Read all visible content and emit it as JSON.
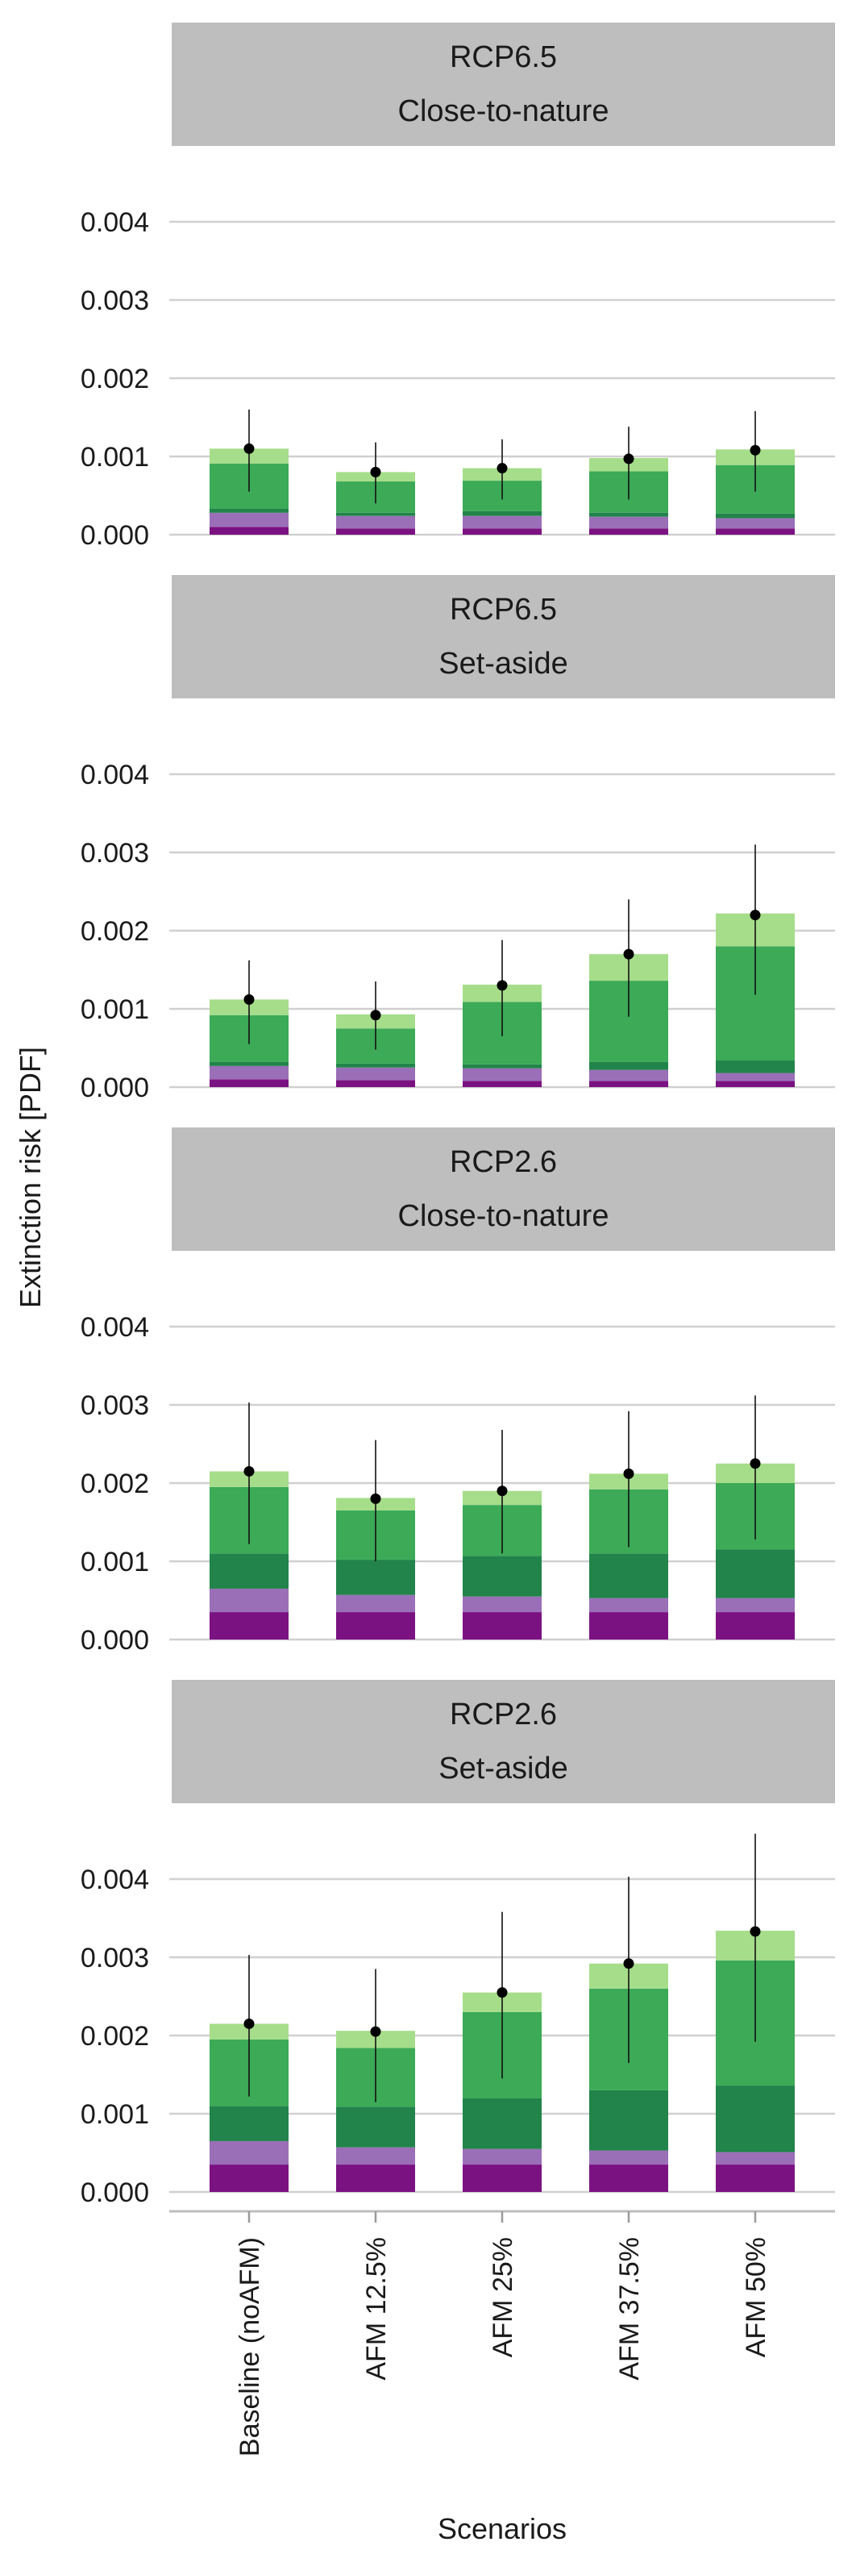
{
  "chart_data": {
    "type": "bar",
    "stacked": true,
    "xlabel": "Scenarios",
    "ylabel": "Extinction risk [PDF]",
    "ylim": [
      0,
      0.0045
    ],
    "yticks": [
      0.0,
      0.001,
      0.002,
      0.003,
      0.004
    ],
    "ytick_labels": [
      "0.000",
      "0.001",
      "0.002",
      "0.003",
      "0.004"
    ],
    "categories": [
      "Baseline (noAFM)",
      "AFM 12.5%",
      "AFM 25%",
      "AFM 37.5%",
      "AFM 50%"
    ],
    "grid": "horizontal",
    "legend": "none",
    "segment_colors": [
      "#7b1282",
      "#9b6fb8",
      "#22844a",
      "#3caa57",
      "#a6dd8a"
    ],
    "panels": [
      {
        "strip_line1": "RCP6.5",
        "strip_line2": "Close-to-nature",
        "segments": [
          [
            0.0001,
            0.00018,
            5e-05,
            0.00058,
            0.00019
          ],
          [
            8e-05,
            0.00016,
            4e-05,
            0.0004,
            0.00012
          ],
          [
            8e-05,
            0.00016,
            6e-05,
            0.00039,
            0.00016
          ],
          [
            8e-05,
            0.00015,
            5e-05,
            0.00053,
            0.00017
          ],
          [
            8e-05,
            0.00013,
            6e-05,
            0.00062,
            0.0002
          ]
        ],
        "point": [
          0.0011,
          0.0008,
          0.00085,
          0.00097,
          0.00108
        ],
        "err_low": [
          0.00055,
          0.0004,
          0.00045,
          0.00045,
          0.00055
        ],
        "err_high": [
          0.0016,
          0.00118,
          0.00122,
          0.00138,
          0.00158
        ]
      },
      {
        "strip_line1": "RCP6.5",
        "strip_line2": "Set-aside",
        "segments": [
          [
            0.0001,
            0.00017,
            5e-05,
            0.0006,
            0.0002
          ],
          [
            9e-05,
            0.00016,
            5e-05,
            0.00045,
            0.00018
          ],
          [
            8e-05,
            0.00016,
            5e-05,
            0.0008,
            0.00022
          ],
          [
            8e-05,
            0.00014,
            0.0001,
            0.00104,
            0.00034
          ],
          [
            8e-05,
            0.0001,
            0.00016,
            0.00146,
            0.00042
          ]
        ],
        "point": [
          0.00112,
          0.00092,
          0.0013,
          0.0017,
          0.0022
        ],
        "err_low": [
          0.00055,
          0.00048,
          0.00065,
          0.0009,
          0.00118
        ],
        "err_high": [
          0.00162,
          0.00135,
          0.00188,
          0.0024,
          0.0031
        ]
      },
      {
        "strip_line1": "RCP2.6",
        "strip_line2": "Close-to-nature",
        "segments": [
          [
            0.00035,
            0.0003,
            0.00045,
            0.00085,
            0.0002
          ],
          [
            0.00035,
            0.00022,
            0.00045,
            0.00063,
            0.00016
          ],
          [
            0.00035,
            0.0002,
            0.00052,
            0.00065,
            0.00018
          ],
          [
            0.00035,
            0.00018,
            0.00057,
            0.00082,
            0.0002
          ],
          [
            0.00035,
            0.00018,
            0.00062,
            0.00085,
            0.00025
          ]
        ],
        "point": [
          0.00215,
          0.0018,
          0.0019,
          0.00212,
          0.00225
        ],
        "err_low": [
          0.00122,
          0.001,
          0.0011,
          0.00118,
          0.00128
        ],
        "err_high": [
          0.00303,
          0.00255,
          0.00268,
          0.00292,
          0.00312
        ]
      },
      {
        "strip_line1": "RCP2.6",
        "strip_line2": "Set-aside",
        "segments": [
          [
            0.00035,
            0.0003,
            0.00045,
            0.00085,
            0.0002
          ],
          [
            0.00035,
            0.00022,
            0.00052,
            0.00075,
            0.00022
          ],
          [
            0.00035,
            0.0002,
            0.00065,
            0.0011,
            0.00025
          ],
          [
            0.00035,
            0.00018,
            0.00077,
            0.0013,
            0.00032
          ],
          [
            0.00035,
            0.00016,
            0.00085,
            0.0016,
            0.00038
          ]
        ],
        "point": [
          0.00215,
          0.00205,
          0.00255,
          0.00292,
          0.00333
        ],
        "err_low": [
          0.00122,
          0.00115,
          0.00145,
          0.00165,
          0.00192
        ],
        "err_high": [
          0.00303,
          0.00285,
          0.00358,
          0.00403,
          0.00458
        ]
      }
    ]
  }
}
